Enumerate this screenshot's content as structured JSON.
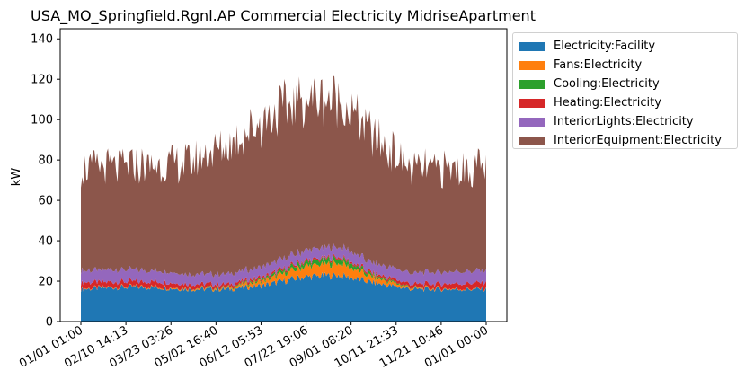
{
  "chart_data": {
    "type": "area",
    "stacked": true,
    "title": "USA_MO_Springfield.Rgnl.AP Commercial Electricity MidriseApartment",
    "xlabel": "",
    "ylabel": "kW",
    "ylim": [
      0,
      145
    ],
    "yticks": [
      0,
      20,
      40,
      60,
      80,
      100,
      120,
      140
    ],
    "xticks": [
      "01/01 01:00",
      "02/10 14:13",
      "03/23 03:26",
      "05/02 16:40",
      "06/12 05:53",
      "07/22 19:06",
      "09/01 08:20",
      "10/11 21:33",
      "11/21 10:46",
      "01/01 00:00"
    ],
    "legend_position": "outside-right-top",
    "grid": false,
    "x_months": [
      "Jan",
      "Feb",
      "Mar",
      "Apr",
      "May",
      "Jun",
      "Jul",
      "Aug",
      "Sep",
      "Oct",
      "Nov",
      "Dec"
    ],
    "series": [
      {
        "name": "Electricity:Facility",
        "color": "#1f77b4",
        "values": [
          16,
          17,
          17,
          16,
          16,
          18,
          22,
          23,
          19,
          16,
          16,
          16
        ]
      },
      {
        "name": "Fans:Electricity",
        "color": "#ff7f0e",
        "values": [
          0.3,
          0.3,
          0.4,
          0.5,
          0.7,
          2.5,
          5,
          6,
          2.5,
          0.6,
          0.3,
          0.3
        ]
      },
      {
        "name": "Cooling:Electricity",
        "color": "#2ca02c",
        "values": [
          0,
          0,
          0,
          0.1,
          0.3,
          1,
          2,
          2.5,
          1,
          0.2,
          0,
          0
        ]
      },
      {
        "name": "Heating:Electricity",
        "color": "#d62728",
        "values": [
          3,
          2.5,
          2.5,
          2,
          1.5,
          1,
          0.8,
          0.8,
          1,
          1.8,
          2.5,
          3
        ]
      },
      {
        "name": "InteriorLights:Electricity",
        "color": "#9467bd",
        "values": [
          6,
          6,
          5.5,
          5,
          5,
          5,
          5,
          5,
          5,
          5.5,
          6,
          6
        ]
      },
      {
        "name": "InteriorEquipment:Electricity",
        "color": "#8c564b",
        "values": [
          51,
          51,
          52,
          56,
          64,
          73,
          75,
          73,
          62,
          51,
          51,
          51
        ]
      }
    ]
  }
}
